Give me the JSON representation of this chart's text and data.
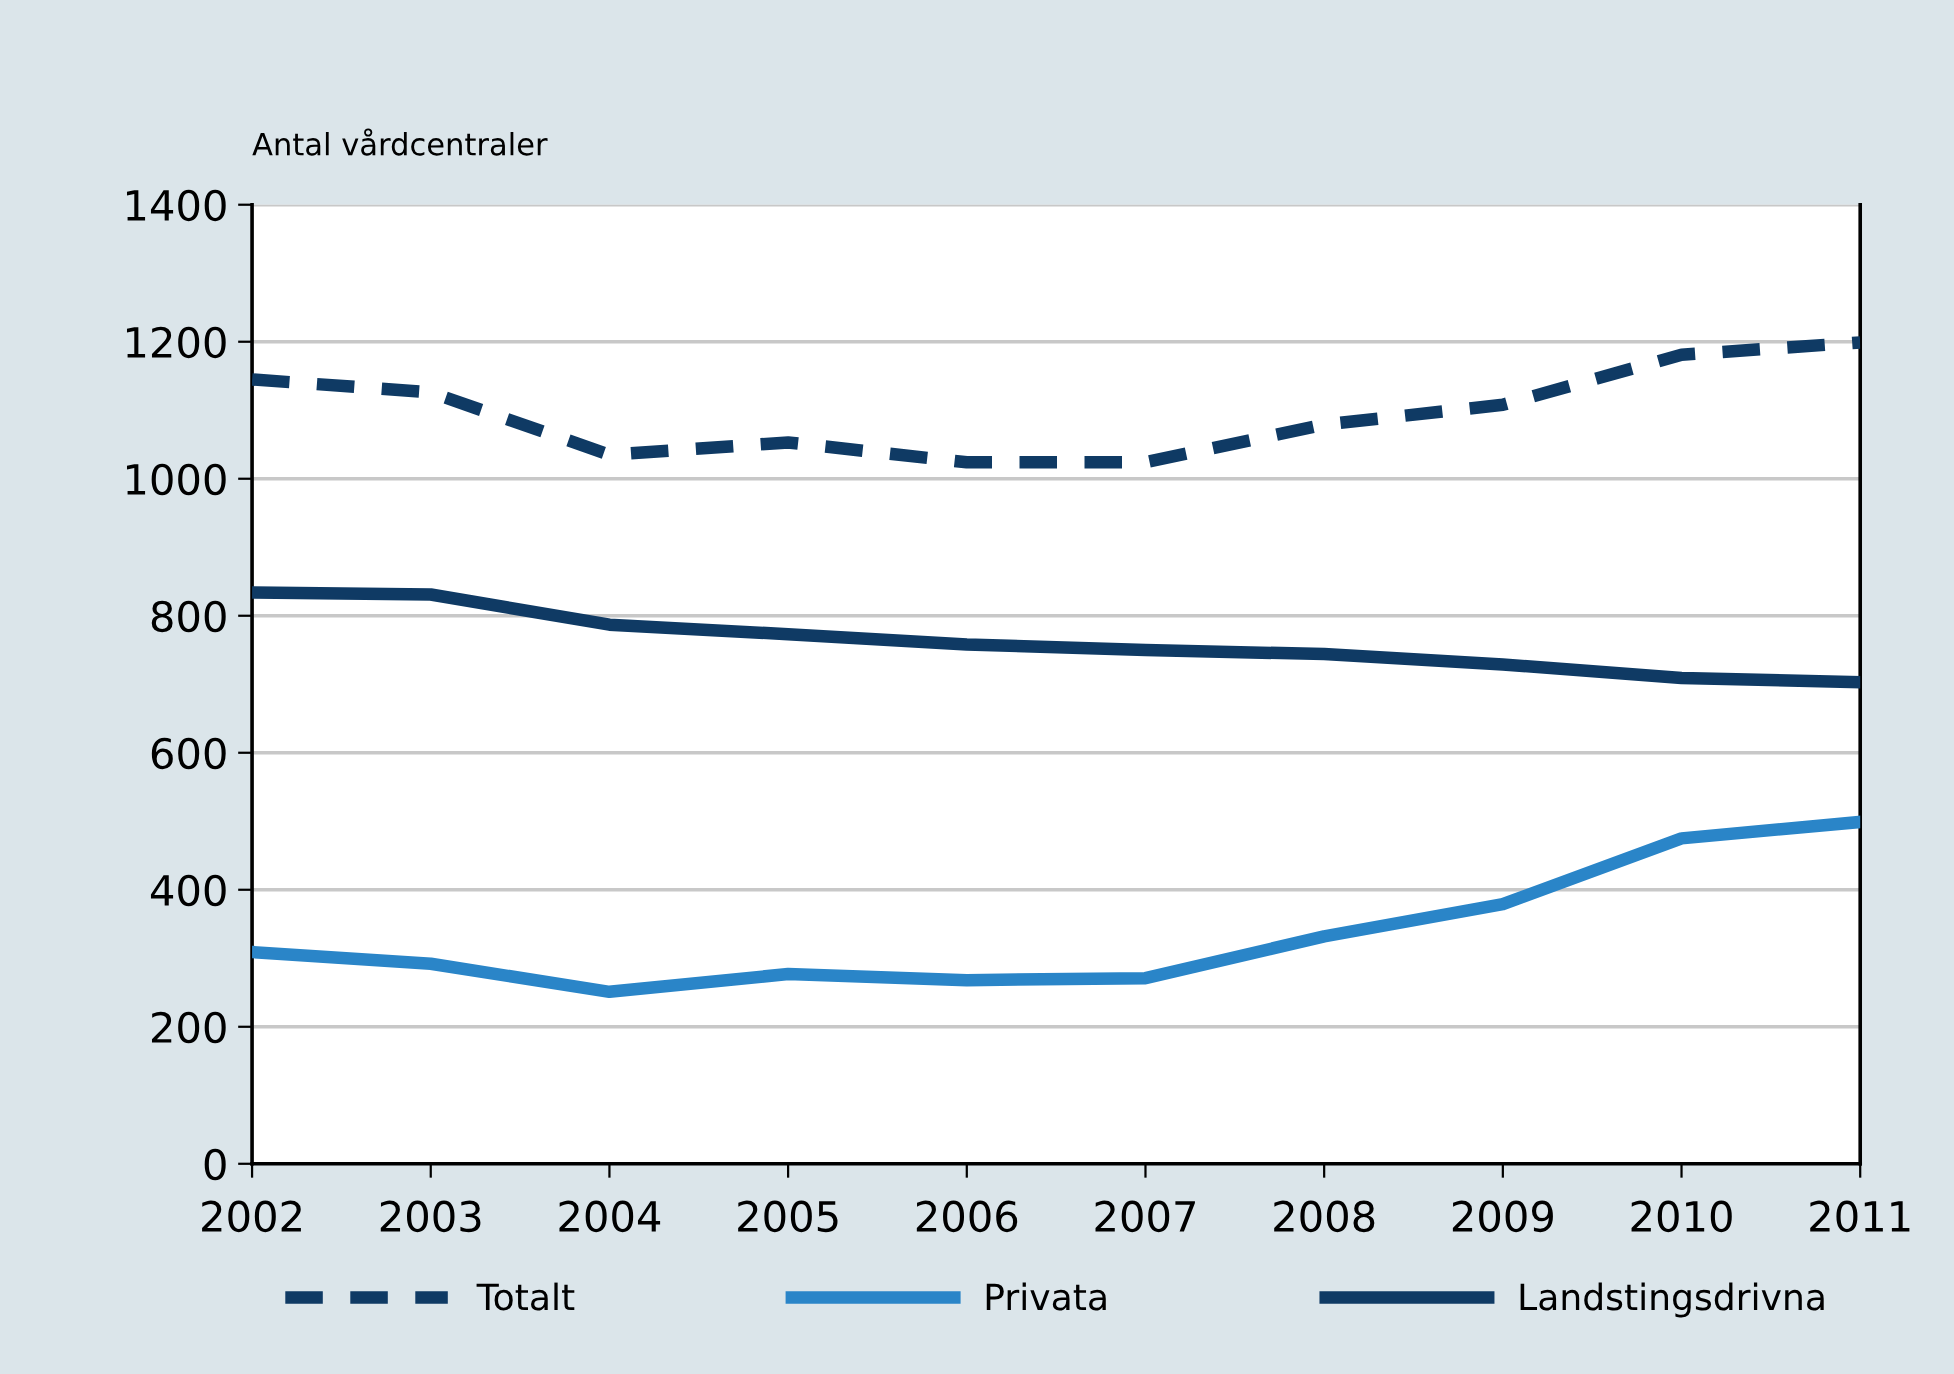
{
  "chart_data": {
    "type": "line",
    "ylabel": "Antal vårdcentraler",
    "x": [
      2002,
      2003,
      2004,
      2005,
      2006,
      2007,
      2008,
      2009,
      2010,
      2011
    ],
    "xlim": [
      2002,
      2011
    ],
    "xticks": [
      2002,
      2003,
      2004,
      2005,
      2006,
      2007,
      2008,
      2009,
      2010,
      2011
    ],
    "ylim": [
      0,
      1400
    ],
    "yticks": [
      0,
      200,
      400,
      600,
      800,
      1000,
      1200,
      1400
    ],
    "grid": "y",
    "legend": "bottom",
    "series": [
      {
        "name": "Totalt",
        "color": "#0f3a64",
        "line_style": "dashed",
        "values": [
          1145,
          1126,
          1035,
          1053,
          1024,
          1024,
          1079,
          1108,
          1181,
          1199
        ]
      },
      {
        "name": "Privata",
        "color": "#2a85c8",
        "line_style": "solid",
        "values": [
          309,
          292,
          251,
          277,
          268,
          271,
          332,
          379,
          475,
          499
        ]
      },
      {
        "name": "Landstingsdrivna",
        "color": "#0f3a64",
        "line_style": "solid",
        "values": [
          834,
          831,
          787,
          773,
          758,
          750,
          744,
          729,
          709,
          703
        ]
      }
    ]
  }
}
